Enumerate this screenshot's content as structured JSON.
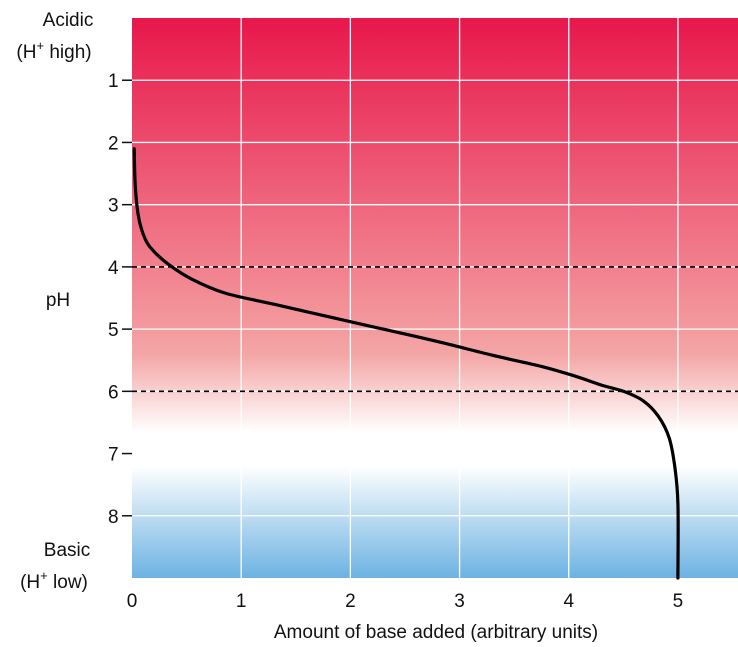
{
  "chart_data": {
    "type": "line",
    "title": "",
    "xlabel": "Amount of base added (arbitrary units)",
    "ylabel": "pH",
    "xlim": [
      0,
      5.55
    ],
    "ylim": [
      0,
      9.0
    ],
    "y_inverted": true,
    "x_ticks": [
      "0",
      "1",
      "2",
      "3",
      "4",
      "5"
    ],
    "y_ticks": [
      "1",
      "2",
      "3",
      "4",
      "5",
      "6",
      "7",
      "8"
    ],
    "acidic_label": {
      "line1": "Acidic",
      "line2_prefix": "(H",
      "line2_sup": "+",
      "line2_suffix": " high)"
    },
    "basic_label": {
      "line1": "Basic",
      "line2_prefix": "(H",
      "line2_sup": "+",
      "line2_suffix": " low)"
    },
    "reference_lines_ph": [
      4,
      6
    ],
    "grid": true,
    "colors": {
      "acidic": "#e8174b",
      "mid": "#f4a5a5",
      "neutral": "#ffffff",
      "basic": "#6cb2e2",
      "curve": "#000000",
      "grid": "#ffffff",
      "reference_line": "#000000"
    },
    "series": [
      {
        "x": [
          0.02,
          0.03,
          0.06,
          0.12,
          0.2,
          0.35,
          0.55,
          0.85,
          1.3,
          1.8,
          2.3,
          2.8,
          3.3,
          3.75,
          4.05,
          4.3,
          4.5,
          4.68,
          4.82,
          4.92,
          4.97,
          5.0,
          5.0
        ],
        "y": [
          2.1,
          2.7,
          3.2,
          3.55,
          3.75,
          3.98,
          4.2,
          4.42,
          4.6,
          4.8,
          5.0,
          5.2,
          5.42,
          5.6,
          5.75,
          5.9,
          6.0,
          6.15,
          6.4,
          6.75,
          7.2,
          7.8,
          9.0
        ]
      }
    ]
  }
}
